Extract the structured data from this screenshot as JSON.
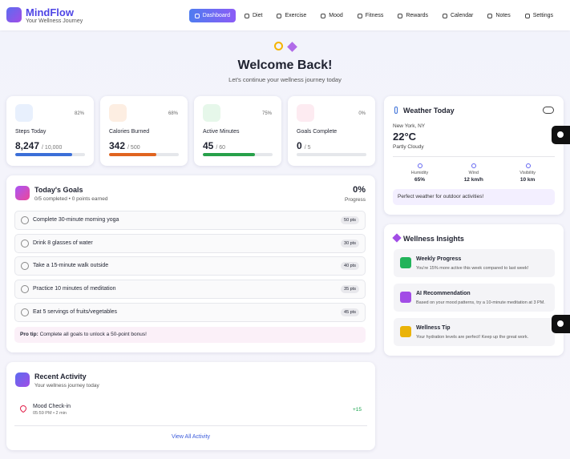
{
  "header": {
    "brand": "MindFlow",
    "tagline": "Your Wellness Journey",
    "nav": [
      "Dashboard",
      "Diet",
      "Exercise",
      "Mood",
      "Fitness",
      "Rewards",
      "Calendar",
      "Notes",
      "Settings"
    ],
    "active": 0
  },
  "hero": {
    "title": "Welcome Back!",
    "subtitle": "Let's continue your wellness journey today"
  },
  "stats": [
    {
      "label": "Steps Today",
      "value": "8,247",
      "target": "/ 10,000",
      "progress": {
        "value": 82,
        "label": "82%"
      },
      "color": "#3b6fd8",
      "tint": "#e8f0fd"
    },
    {
      "label": "Calories Burned",
      "value": "342",
      "target": "/ 500",
      "progress": {
        "value": 68,
        "label": "68%"
      },
      "color": "#e0641f",
      "tint": "#fdeee2"
    },
    {
      "label": "Active Minutes",
      "value": "45",
      "target": "/ 60",
      "progress": {
        "value": 75,
        "label": "75%"
      },
      "color": "#27a04a",
      "tint": "#e6f7ea"
    },
    {
      "label": "Goals Complete",
      "value": "0",
      "target": "/ 5",
      "progress": {
        "value": 0,
        "label": "0%"
      },
      "color": "#a855f7",
      "tint": "#fdebf1"
    }
  ],
  "goals": {
    "title": "Today's Goals",
    "summary": "0/5 completed • 0 points earned",
    "percent": "0%",
    "percent_caption": "Progress",
    "items": [
      {
        "text": "Complete 30-minute morning yoga",
        "points": "50 pts"
      },
      {
        "text": "Drink 8 glasses of water",
        "points": "30 pts"
      },
      {
        "text": "Take a 15-minute walk outside",
        "points": "40 pts"
      },
      {
        "text": "Practice 10 minutes of meditation",
        "points": "35 pts"
      },
      {
        "text": "Eat 5 servings of fruits/vegetables",
        "points": "45 pts"
      }
    ],
    "tip": {
      "lead": "Pro tip:",
      "text": "Complete all goals to unlock a 50-point bonus!"
    }
  },
  "recent": {
    "title": "Recent Activity",
    "subtitle": "Your wellness journey today",
    "items": [
      {
        "title": "Mood Check-in",
        "meta": "05:59 PM • 2 min",
        "points": "+15"
      }
    ],
    "link": "View All Activity"
  },
  "weather": {
    "title": "Weather Today",
    "location": "New York, NY",
    "temp": "22°C",
    "condition": "Partly Cloudy",
    "metrics": [
      {
        "label": "Humidity",
        "value": "65%"
      },
      {
        "label": "Wind",
        "value": "12 km/h"
      },
      {
        "label": "Visibility",
        "value": "10 km"
      }
    ],
    "note": "Perfect weather for outdoor activities!"
  },
  "insights": {
    "title": "Wellness Insights",
    "items": [
      {
        "title": "Weekly Progress",
        "text": "You're 15% more active this week compared to last week!",
        "color": "#22b35a"
      },
      {
        "title": "AI Recommendation",
        "text": "Based on your mood patterns, try a 10-minute meditation at 3 PM.",
        "color": "#a24de6"
      },
      {
        "title": "Wellness Tip",
        "text": "Your hydration levels are perfect! Keep up the great work.",
        "color": "#eab308"
      }
    ]
  }
}
